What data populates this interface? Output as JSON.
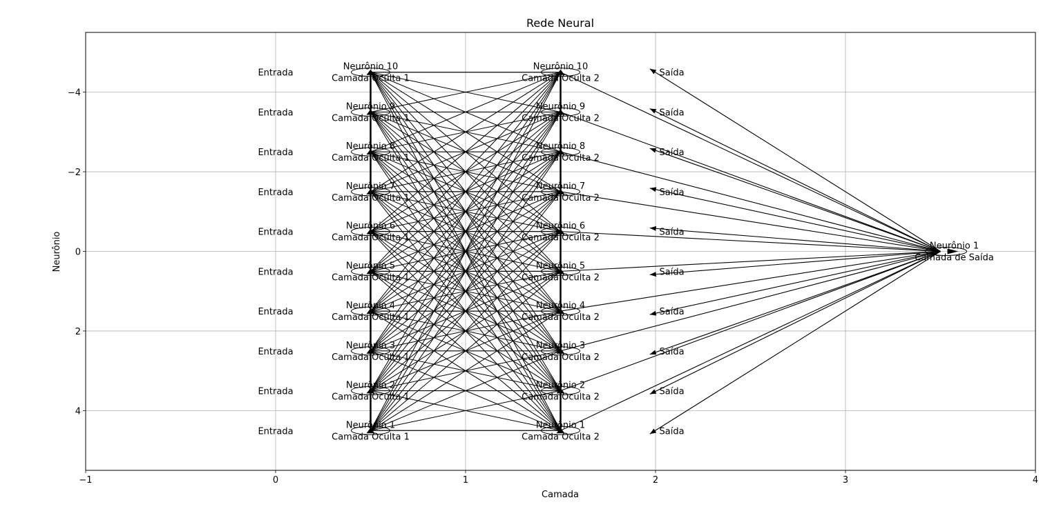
{
  "chart_data": {
    "type": "network-diagram",
    "title": "Rede Neural",
    "xlabel": "Camada",
    "ylabel": "Neurônio",
    "xlim": [
      -1,
      4
    ],
    "ylim": [
      5.5,
      -5.5
    ],
    "y_inverted": true,
    "grid": true,
    "xticks": [
      -1,
      0,
      1,
      2,
      3,
      4
    ],
    "yticks": [
      -4,
      -2,
      0,
      2,
      4
    ],
    "xtick_labels": [
      "−1",
      "0",
      "1",
      "2",
      "3",
      "4"
    ],
    "ytick_labels": [
      "−4",
      "−2",
      "0",
      "2",
      "4"
    ],
    "layers": [
      {
        "x": 0,
        "neuron_count": 10,
        "labels": [
          "Entrada",
          "Entrada",
          "Entrada",
          "Entrada",
          "Entrada",
          "Entrada",
          "Entrada",
          "Entrada",
          "Entrada",
          "Entrada"
        ]
      },
      {
        "x": 1,
        "neuron_count": 10,
        "names": [
          "Neurônio 1",
          "Neurônio 2",
          "Neurônio 3",
          "Neurônio 4",
          "Neurônio 5",
          "Neurônio 6",
          "Neurônio 7",
          "Neurônio 8",
          "Neurônio 9",
          "Neurônio 10"
        ],
        "layer_label": "Camada Oculta 1"
      },
      {
        "x": 2,
        "neuron_count": 10,
        "names": [
          "Neurônio 1",
          "Neurônio 2",
          "Neurônio 3",
          "Neurônio 4",
          "Neurônio 5",
          "Neurônio 6",
          "Neurônio 7",
          "Neurônio 8",
          "Neurônio 9",
          "Neurônio 10"
        ],
        "layer_label": "Camada Oculta 2"
      },
      {
        "x": 3,
        "neuron_count": 10,
        "labels": [
          "Saída",
          "Saída",
          "Saída",
          "Saída",
          "Saída",
          "Saída",
          "Saída",
          "Saída",
          "Saída",
          "Saída"
        ]
      },
      {
        "x": 4,
        "neuron_count": 1,
        "names": [
          "Neurônio 1"
        ],
        "layer_label": "Camada de Saída"
      }
    ],
    "neuron_y": [
      4.5,
      3.5,
      2.5,
      1.5,
      0.5,
      -0.5,
      -1.5,
      -2.5,
      -3.5,
      -4.5
    ],
    "output_neuron_y": 0
  }
}
